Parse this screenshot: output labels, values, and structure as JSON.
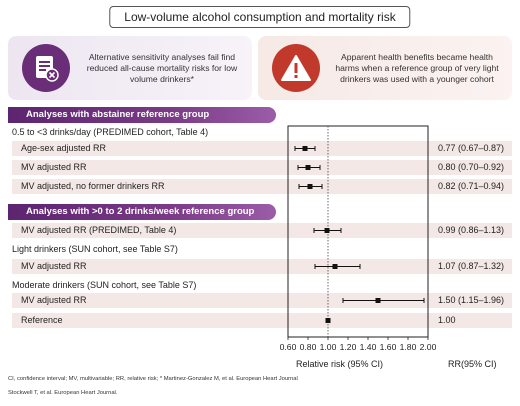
{
  "title": "Low-volume alcohol consumption and mortality risk",
  "callouts": {
    "left_icon": "document-x-icon",
    "left_text": "Alternative sensitivity analyses fail find reduced all-cause mortality risks for low volume drinkers*",
    "right_icon": "warning-icon",
    "right_text": "Apparent health benefits became health harms when a reference group of very light drinkers was used with a younger cohort"
  },
  "sections": {
    "abstainer": "Analyses with abstainer reference group",
    "light_ref": "Analyses with >0 to 2 drinks/week reference group"
  },
  "groups": {
    "predimed": "0.5 to <3 drinks/day (PREDIMED cohort, Table 4)",
    "light": "Light drinkers (SUN cohort, see Table S7)",
    "moderate": "Moderate drinkers (SUN cohort, see Table S7)"
  },
  "rows": [
    {
      "label": "Age-sex adjusted RR",
      "rr": "0.77 (0.67–0.87)"
    },
    {
      "label": "MV adjusted RR",
      "rr": "0.80 (0.70–0.92)"
    },
    {
      "label": "MV adjusted, no former drinkers RR",
      "rr": "0.82 (0.71–0.94)"
    },
    {
      "label": "MV adjusted RR (PREDIMED, Table 4)",
      "rr": "0.99 (0.86–1.13)"
    },
    {
      "label": "MV adjusted RR",
      "rr": "1.07 (0.87–1.32)"
    },
    {
      "label": "MV adjusted RR",
      "rr": "1.50 (1.15–1.96)"
    },
    {
      "label": "Reference",
      "rr": "1.00"
    }
  ],
  "chart_data": {
    "type": "forest",
    "xlabel": "Relative risk (95% CI)",
    "rr_header": "RR(95% CI)",
    "xlim": [
      0.6,
      2.0
    ],
    "reference_line": 1.0,
    "ticks": [
      "0.60",
      "0.80",
      "1.00",
      "1.20",
      "1.40",
      "1.60",
      "1.80",
      "2.00"
    ],
    "tick_values": [
      0.6,
      0.8,
      1.0,
      1.2,
      1.4,
      1.6,
      1.8,
      2.0
    ],
    "points": [
      {
        "rr": 0.77,
        "lo": 0.67,
        "hi": 0.87
      },
      {
        "rr": 0.8,
        "lo": 0.7,
        "hi": 0.92
      },
      {
        "rr": 0.82,
        "lo": 0.71,
        "hi": 0.94
      },
      {
        "rr": 0.99,
        "lo": 0.86,
        "hi": 1.13
      },
      {
        "rr": 1.07,
        "lo": 0.87,
        "hi": 1.32
      },
      {
        "rr": 1.5,
        "lo": 1.15,
        "hi": 1.96
      },
      {
        "rr": 1.0,
        "lo": 1.0,
        "hi": 1.0
      }
    ]
  },
  "footnotes": {
    "line1": "CI, confidence interval; MV, multivariable; RR, relative risk; * Martinez-Gonzalez M, et al. European Heart Journal",
    "line2": "Stockwell T, et al. European Heart Journal."
  }
}
